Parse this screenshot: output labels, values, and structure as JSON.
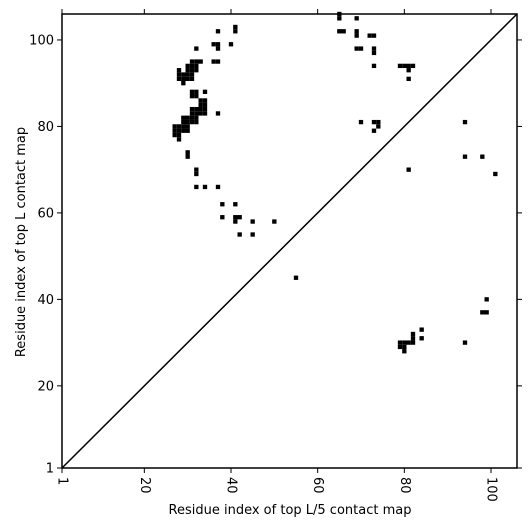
{
  "chart_data": {
    "type": "scatter",
    "title": "",
    "xlabel": "Residue index of top L/5 contact map",
    "ylabel": "Residue index of top L contact map",
    "xlim": [
      1,
      106
    ],
    "ylim": [
      1,
      106
    ],
    "x_ticks": [
      1,
      20,
      40,
      60,
      80,
      100
    ],
    "y_ticks": [
      1,
      20,
      40,
      60,
      80,
      100
    ],
    "x_tick_labels": [
      "1",
      "20",
      "40",
      "60",
      "80",
      "100"
    ],
    "y_tick_labels": [
      "1",
      "20",
      "40",
      "60",
      "80",
      "100"
    ],
    "diagonal": true,
    "grid": false,
    "marker_color": "#000000",
    "upper_points": [
      [
        41,
        103
      ],
      [
        41,
        102
      ],
      [
        37,
        102
      ],
      [
        65,
        106
      ],
      [
        65,
        105
      ],
      [
        69,
        105
      ],
      [
        65,
        102
      ],
      [
        66,
        102
      ],
      [
        69,
        102
      ],
      [
        69,
        101
      ],
      [
        72,
        101
      ],
      [
        73,
        101
      ],
      [
        36,
        99
      ],
      [
        37,
        99
      ],
      [
        40,
        99
      ],
      [
        37,
        98
      ],
      [
        32,
        98
      ],
      [
        69,
        98
      ],
      [
        70,
        98
      ],
      [
        73,
        98
      ],
      [
        73,
        97
      ],
      [
        31,
        95
      ],
      [
        32,
        95
      ],
      [
        33,
        95
      ],
      [
        36,
        95
      ],
      [
        37,
        95
      ],
      [
        30,
        94
      ],
      [
        31,
        94
      ],
      [
        32,
        94
      ],
      [
        73,
        94
      ],
      [
        79,
        94
      ],
      [
        80,
        94
      ],
      [
        81,
        94
      ],
      [
        82,
        94
      ],
      [
        28,
        93
      ],
      [
        30,
        93
      ],
      [
        31,
        93
      ],
      [
        32,
        93
      ],
      [
        81,
        93
      ],
      [
        28,
        92
      ],
      [
        29,
        92
      ],
      [
        30,
        92
      ],
      [
        31,
        92
      ],
      [
        28,
        91
      ],
      [
        29,
        91
      ],
      [
        30,
        91
      ],
      [
        31,
        91
      ],
      [
        81,
        91
      ],
      [
        29,
        90
      ],
      [
        31,
        88
      ],
      [
        32,
        88
      ],
      [
        34,
        88
      ],
      [
        31,
        87
      ],
      [
        32,
        87
      ],
      [
        33,
        86
      ],
      [
        34,
        86
      ],
      [
        33,
        85
      ],
      [
        34,
        85
      ],
      [
        31,
        84
      ],
      [
        32,
        84
      ],
      [
        33,
        84
      ],
      [
        34,
        84
      ],
      [
        31,
        83
      ],
      [
        32,
        83
      ],
      [
        33,
        83
      ],
      [
        34,
        83
      ],
      [
        37,
        83
      ],
      [
        29,
        82
      ],
      [
        30,
        82
      ],
      [
        31,
        82
      ],
      [
        32,
        82
      ],
      [
        29,
        81
      ],
      [
        30,
        81
      ],
      [
        31,
        81
      ],
      [
        32,
        81
      ],
      [
        70,
        81
      ],
      [
        73,
        81
      ],
      [
        74,
        81
      ],
      [
        94,
        81
      ],
      [
        27,
        80
      ],
      [
        28,
        80
      ],
      [
        29,
        80
      ],
      [
        30,
        80
      ],
      [
        74,
        80
      ],
      [
        27,
        79
      ],
      [
        28,
        79
      ],
      [
        29,
        79
      ],
      [
        30,
        79
      ],
      [
        73,
        79
      ],
      [
        27,
        78
      ],
      [
        28,
        78
      ],
      [
        28,
        77
      ],
      [
        30,
        74
      ],
      [
        30,
        73
      ],
      [
        94,
        73
      ],
      [
        98,
        73
      ],
      [
        32,
        70
      ],
      [
        81,
        70
      ],
      [
        32,
        69
      ],
      [
        101,
        69
      ],
      [
        32,
        66
      ],
      [
        34,
        66
      ],
      [
        37,
        66
      ],
      [
        38,
        62
      ],
      [
        41,
        62
      ],
      [
        38,
        59
      ],
      [
        41,
        59
      ],
      [
        42,
        59
      ],
      [
        41,
        58
      ],
      [
        45,
        58
      ],
      [
        50,
        58
      ],
      [
        42,
        55
      ],
      [
        45,
        55
      ],
      [
        55,
        45
      ]
    ],
    "lower_points": [
      [
        99,
        40
      ],
      [
        98,
        37
      ],
      [
        99,
        37
      ],
      [
        84,
        33
      ],
      [
        82,
        32
      ],
      [
        82,
        31
      ],
      [
        84,
        31
      ],
      [
        79,
        30
      ],
      [
        80,
        30
      ],
      [
        81,
        30
      ],
      [
        82,
        30
      ],
      [
        94,
        30
      ],
      [
        79,
        29
      ],
      [
        80,
        29
      ],
      [
        80,
        28
      ]
    ]
  }
}
